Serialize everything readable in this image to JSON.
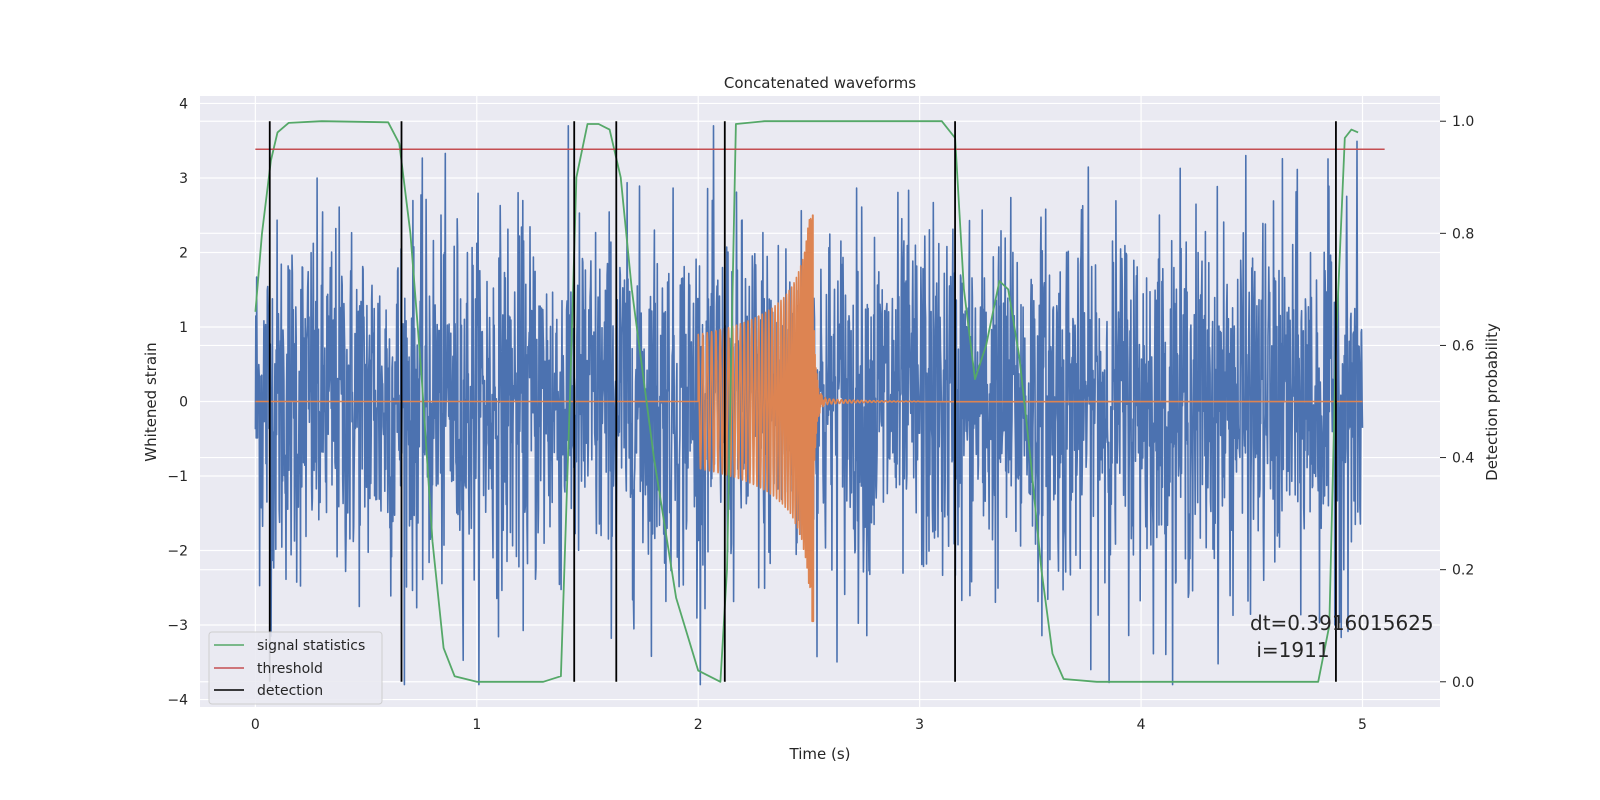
{
  "chart_data": {
    "type": "line",
    "title": "Concatenated waveforms",
    "xlabel": "Time (s)",
    "ylabel_left": "Whitened strain",
    "ylabel_right": "Detection probability",
    "xlim": [
      -0.25,
      5.35
    ],
    "ylim_left": [
      -4.1,
      4.1
    ],
    "ylim_right": [
      -0.045,
      1.045
    ],
    "x_ticks": [
      0,
      1,
      2,
      3,
      4,
      5
    ],
    "x_tick_labels": [
      "0",
      "1",
      "2",
      "3",
      "4",
      "5"
    ],
    "y_left_ticks": [
      -4,
      -3,
      -2,
      -1,
      0,
      1,
      2,
      3,
      4
    ],
    "y_left_tick_labels": [
      "−4",
      "−3",
      "−2",
      "−1",
      "0",
      "1",
      "2",
      "3",
      "4"
    ],
    "y_right_ticks": [
      0.0,
      0.2,
      0.4,
      0.6,
      0.8,
      1.0
    ],
    "y_right_tick_labels": [
      "0.0",
      "0.2",
      "0.4",
      "0.6",
      "0.8",
      "1.0"
    ],
    "grid": true,
    "legend_position": "lower-left",
    "legend": [
      {
        "label": "signal statistics",
        "color": "#55a868"
      },
      {
        "label": "threshold",
        "color": "#c44e52"
      },
      {
        "label": "detection",
        "color": "#000000"
      }
    ],
    "colors": {
      "noise": "#4c72b0",
      "waveform": "#dd8452",
      "signal_statistics": "#55a868",
      "threshold": "#c44e52",
      "detection": "#000000",
      "axes_background": "#eaeaf2",
      "grid": "#ffffff"
    },
    "series": [
      {
        "label": "whitened strain (noise)",
        "axis": "left",
        "x_range": [
          0.0,
          5.0
        ],
        "typical_amplitude": 1.2,
        "peak_range": [
          -3.8,
          3.7
        ]
      },
      {
        "label": "injected waveform",
        "axis": "left",
        "x_start": 2.0,
        "x_merger": 2.52,
        "x_end": 3.0,
        "amplitude_start": 0.9,
        "amplitude_peak": 2.5,
        "amplitude_min": -2.95
      },
      {
        "label": "signal statistics",
        "axis": "right",
        "x": [
          0.0,
          0.03,
          0.07,
          0.1,
          0.15,
          0.3,
          0.6,
          0.65,
          0.7,
          0.75,
          0.8,
          0.85,
          0.9,
          1.0,
          1.3,
          1.38,
          1.42,
          1.45,
          1.5,
          1.55,
          1.6,
          1.65,
          1.7,
          1.8,
          1.9,
          2.0,
          2.1,
          2.13,
          2.17,
          2.3,
          3.1,
          3.16,
          3.2,
          3.25,
          3.3,
          3.36,
          3.4,
          3.45,
          3.5,
          3.55,
          3.6,
          3.65,
          3.8,
          4.8,
          4.85,
          4.88,
          4.92,
          4.95,
          4.98
        ],
        "y": [
          0.66,
          0.8,
          0.93,
          0.98,
          0.997,
          1.0,
          0.998,
          0.96,
          0.8,
          0.55,
          0.25,
          0.06,
          0.01,
          0.0,
          0.0,
          0.01,
          0.5,
          0.9,
          0.995,
          0.995,
          0.985,
          0.9,
          0.7,
          0.4,
          0.15,
          0.02,
          0.0,
          0.2,
          0.995,
          1.0,
          1.0,
          0.97,
          0.7,
          0.54,
          0.6,
          0.715,
          0.7,
          0.58,
          0.4,
          0.2,
          0.05,
          0.005,
          0.0,
          0.0,
          0.1,
          0.6,
          0.97,
          0.985,
          0.98
        ]
      },
      {
        "label": "threshold",
        "axis": "right",
        "x": [
          0.0,
          5.1
        ],
        "y": [
          0.95,
          0.95
        ]
      },
      {
        "label": "detection",
        "axis": "right",
        "type": "vertical_lines",
        "x": [
          0.065,
          0.66,
          1.44,
          1.63,
          2.12,
          3.16,
          4.88
        ],
        "y_range": [
          0.0,
          1.0
        ]
      }
    ],
    "annotations": [
      "dt=0.3916015625",
      " i=1911"
    ]
  }
}
